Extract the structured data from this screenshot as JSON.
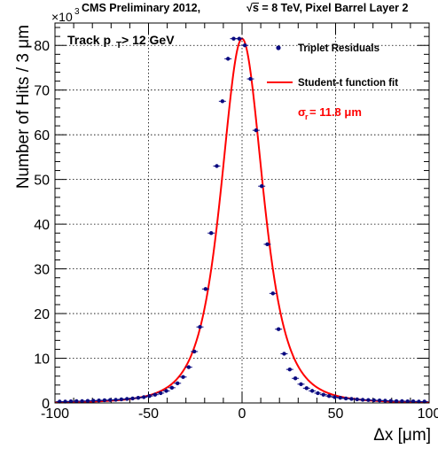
{
  "chart_data": {
    "type": "scatter",
    "title": "CMS Preliminary 2012,",
    "title_energy": "s = 8 TeV, Pixel Barrel Layer 2",
    "title_sqrt_symbol": "√",
    "annotation_track": "Track p",
    "annotation_track_sub": "T",
    "annotation_track_tail": " > 12 GeV",
    "annotation_sigma": "σ",
    "annotation_sigma_sub": "r",
    "annotation_sigma_tail": " = 11.8  μm",
    "xlabel": "Δx [μm]",
    "ylabel": "Number of Hits / 3 μm",
    "y_multiplier": "×10",
    "y_multiplier_exp": "3",
    "xlim": [
      -100,
      100
    ],
    "ylim": [
      0,
      85
    ],
    "x_ticks": [
      -100,
      -50,
      0,
      50,
      100
    ],
    "y_ticks": [
      0,
      10,
      20,
      30,
      40,
      50,
      60,
      70,
      80
    ],
    "grid": true,
    "legend_position": "top-right",
    "colors": {
      "points": "#0a0a80",
      "fit": "#ff0000",
      "sigma_text": "#ff0000"
    },
    "series": [
      {
        "name": "Triplet Residuals",
        "kind": "points",
        "x": [
          -97.5,
          -94.5,
          -91.5,
          -88.5,
          -85.5,
          -82.5,
          -79.5,
          -76.5,
          -73.5,
          -70.5,
          -67.5,
          -64.5,
          -61.5,
          -58.5,
          -55.5,
          -52.5,
          -49.5,
          -46.5,
          -43.5,
          -40.5,
          -37.5,
          -34.5,
          -31.5,
          -28.5,
          -25.5,
          -22.5,
          -19.5,
          -16.5,
          -13.5,
          -10.5,
          -7.5,
          -4.5,
          -1.5,
          1.5,
          4.5,
          7.5,
          10.5,
          13.5,
          16.5,
          19.5,
          22.5,
          25.5,
          28.5,
          31.5,
          34.5,
          37.5,
          40.5,
          43.5,
          46.5,
          49.5,
          52.5,
          55.5,
          58.5,
          61.5,
          64.5,
          67.5,
          70.5,
          73.5,
          76.5,
          79.5,
          82.5,
          85.5,
          88.5,
          91.5,
          94.5,
          97.5
        ],
        "y": [
          0.3,
          0.3,
          0.35,
          0.4,
          0.4,
          0.45,
          0.5,
          0.55,
          0.6,
          0.65,
          0.7,
          0.8,
          0.9,
          1.0,
          1.15,
          1.3,
          1.55,
          1.85,
          2.2,
          2.7,
          3.4,
          4.4,
          5.8,
          8.0,
          11.5,
          17.0,
          25.5,
          38.0,
          53.0,
          67.5,
          77.0,
          81.5,
          81.5,
          80.0,
          72.5,
          61.0,
          48.5,
          35.5,
          24.5,
          16.5,
          11.0,
          7.5,
          5.5,
          4.2,
          3.3,
          2.7,
          2.2,
          1.85,
          1.55,
          1.3,
          1.15,
          1.0,
          0.9,
          0.8,
          0.7,
          0.65,
          0.6,
          0.55,
          0.5,
          0.45,
          0.4,
          0.4,
          0.35,
          0.35,
          0.3,
          0.3
        ]
      },
      {
        "name": "Student-t function fit",
        "kind": "line",
        "peak": 81.5,
        "center": 0.0,
        "sigma": 11.8,
        "nu": 3.0
      }
    ]
  }
}
